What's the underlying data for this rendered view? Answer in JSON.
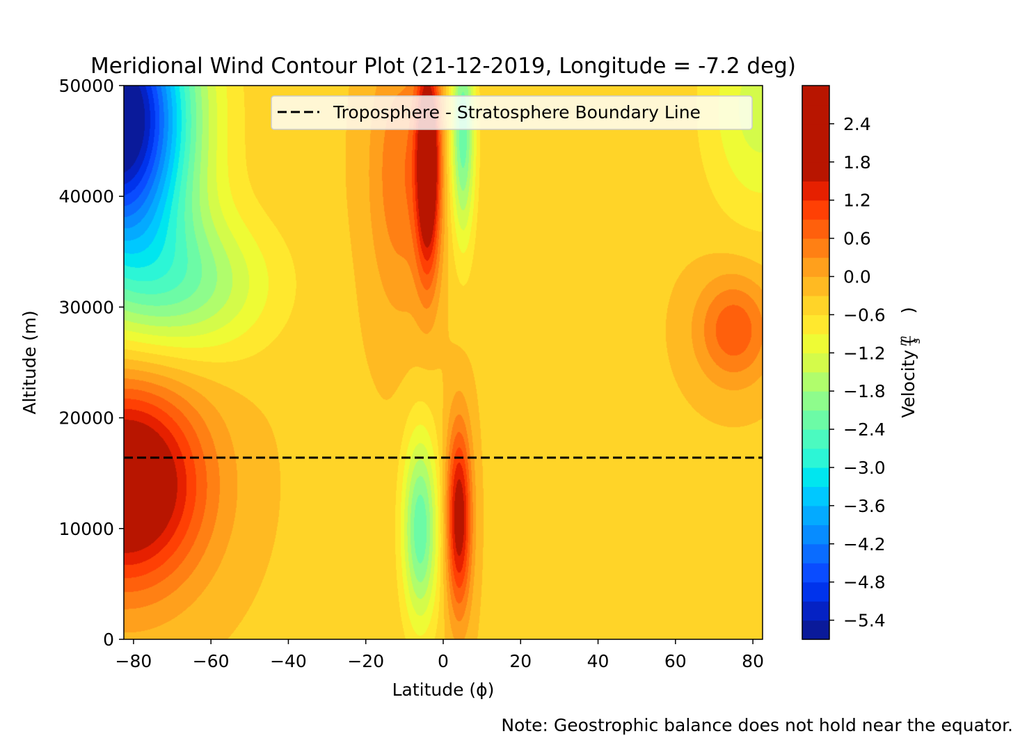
{
  "chart_data": {
    "type": "heatmap",
    "subtype": "filled-contour",
    "title": "Meridional Wind Contour Plot (21-12-2019, Longitude = -7.2 deg)",
    "xlabel": "Latitude (ϕ)",
    "ylabel": "Altitude (m)",
    "xlim": [
      -82.5,
      82.5
    ],
    "ylim": [
      0,
      50000
    ],
    "x_ticks": [
      -80,
      -60,
      -40,
      -20,
      0,
      20,
      40,
      60,
      80
    ],
    "x_tick_labels": [
      "−80",
      "−60",
      "−40",
      "−20",
      "0",
      "20",
      "40",
      "60",
      "80"
    ],
    "y_ticks": [
      0,
      10000,
      20000,
      30000,
      40000,
      50000
    ],
    "y_tick_labels": [
      "0",
      "10000",
      "20000",
      "30000",
      "40000",
      "50000"
    ],
    "grid": false,
    "legend": {
      "placement": "top-right",
      "entries": [
        {
          "label": "Troposphere - Stratosphere Boundary Line",
          "style": "dashed",
          "color": "#000000"
        }
      ]
    },
    "boundary_line": {
      "y": 16400
    },
    "colorbar": {
      "label_text": "Velocity (",
      "label_unit_num": "m",
      "label_unit_den": "s",
      "label_close": ")",
      "levels": [
        -5.7,
        -5.4,
        -5.1,
        -4.8,
        -4.5,
        -4.2,
        -3.9,
        -3.6,
        -3.3,
        -3.0,
        -2.7,
        -2.4,
        -2.1,
        -1.8,
        -1.5,
        -1.2,
        -0.9,
        -0.6,
        -0.3,
        0.0,
        0.3,
        0.6,
        0.9,
        1.2,
        1.5,
        1.8,
        2.1,
        2.4,
        2.7,
        3.0
      ],
      "tick_values": [
        -5.4,
        -4.8,
        -4.2,
        -3.6,
        -3.0,
        -2.4,
        -1.8,
        -1.2,
        -0.6,
        0.0,
        0.6,
        1.2,
        1.8,
        2.4
      ],
      "tick_labels": [
        "−5.4",
        "−4.8",
        "−4.2",
        "−3.6",
        "−3.0",
        "−2.4",
        "−1.8",
        "−1.2",
        "−0.6",
        "0.0",
        "0.6",
        "1.2",
        "1.8",
        "2.4"
      ],
      "colors": [
        "#0a1a9a",
        "#0522c4",
        "#0033ec",
        "#0a4cff",
        "#0a6cff",
        "#078cff",
        "#04aaff",
        "#00c8ff",
        "#00e6ef",
        "#2cf6d6",
        "#4bfac0",
        "#6cfba6",
        "#8efc8c",
        "#b0fd6c",
        "#d4fb4a",
        "#eefb35",
        "#ffe82e",
        "#ffd428",
        "#ffba22",
        "#ffa01c",
        "#ff8014",
        "#ff600c",
        "#ff4004",
        "#e62000",
        "#b81500"
      ]
    },
    "field_features": [
      {
        "lat": -84,
        "alt": 47000,
        "value": -5.8,
        "spread_lat": 13,
        "spread_alt": 9000
      },
      {
        "lat": -82,
        "alt": 14000,
        "value": 2.9,
        "spread_lat": 14,
        "spread_alt": 6500
      },
      {
        "lat": -66,
        "alt": 32000,
        "value": -1.4,
        "spread_lat": 15,
        "spread_alt": 4500
      },
      {
        "lat": -6,
        "alt": 10000,
        "value": -2.0,
        "spread_lat": 3.2,
        "spread_alt": 6000
      },
      {
        "lat": -4,
        "alt": 43000,
        "value": 2.7,
        "spread_lat": 2.2,
        "spread_alt": 7000
      },
      {
        "lat": -11,
        "alt": 42000,
        "value": 0.9,
        "spread_lat": 6,
        "spread_alt": 9000
      },
      {
        "lat": 4,
        "alt": 11000,
        "value": 2.2,
        "spread_lat": 2.3,
        "spread_alt": 6000
      },
      {
        "lat": 5,
        "alt": 46000,
        "value": -2.0,
        "spread_lat": 2.2,
        "spread_alt": 7000
      },
      {
        "lat": 75,
        "alt": 28000,
        "value": 1.2,
        "spread_lat": 7,
        "spread_alt": 3500
      },
      {
        "lat": 82,
        "alt": 48000,
        "value": -1.0,
        "spread_lat": 10,
        "spread_alt": 7000
      }
    ]
  },
  "footnote": "Note: Geostrophic balance does not hold near the equator."
}
